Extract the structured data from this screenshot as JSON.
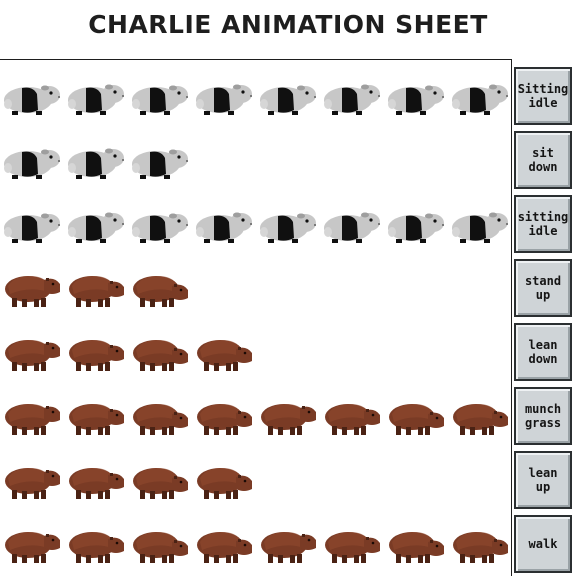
{
  "title": "CHARLIE ANIMATION SHEET",
  "colors": {
    "guinea_light": "#c7c7c7",
    "guinea_dark": "#101010",
    "capy_body": "#7a3b25",
    "capy_dark": "#4a2214",
    "panel": "#cfd4d7",
    "border": "#2b2f31"
  },
  "rows": [
    {
      "label": "Sitting\nidle",
      "sprite": "guinea-pig-icon",
      "frames": 8
    },
    {
      "label": "sit\ndown",
      "sprite": "guinea-pig-icon",
      "frames": 3
    },
    {
      "label": "sitting\nidle",
      "sprite": "guinea-pig-icon",
      "frames": 8
    },
    {
      "label": "stand\nup",
      "sprite": "capybara-icon",
      "frames": 3
    },
    {
      "label": "lean\ndown",
      "sprite": "capybara-icon",
      "frames": 4
    },
    {
      "label": "munch\ngrass",
      "sprite": "capybara-icon",
      "frames": 8
    },
    {
      "label": "lean\nup",
      "sprite": "capybara-icon",
      "frames": 4
    },
    {
      "label": "walk",
      "sprite": "capybara-icon",
      "frames": 8
    }
  ]
}
